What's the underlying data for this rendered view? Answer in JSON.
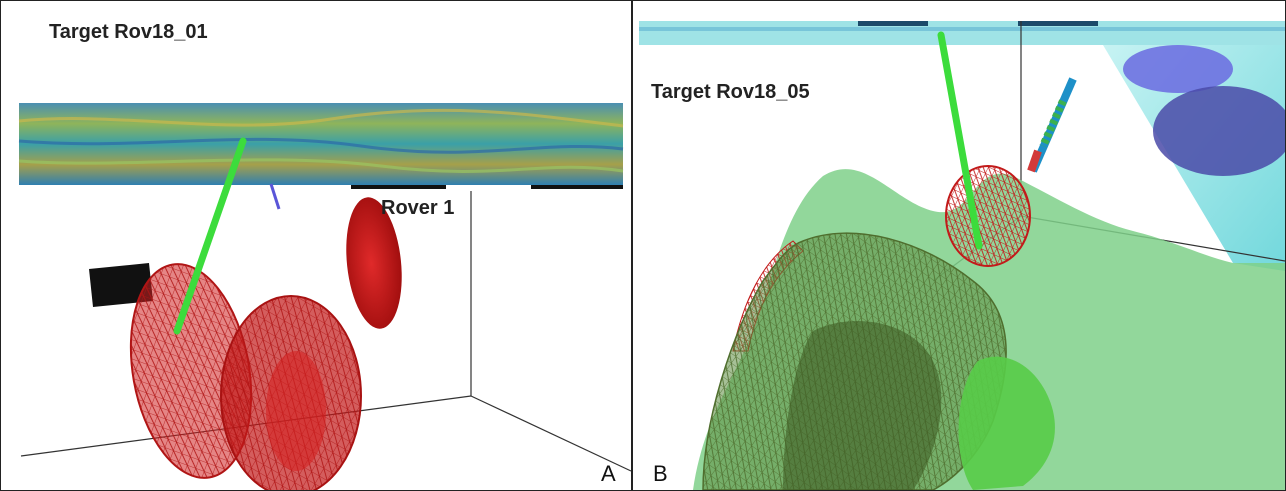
{
  "panels": [
    {
      "id": "A",
      "title": "Target Rov18_01",
      "annotation": "Rover 1",
      "corner_label": "A"
    },
    {
      "id": "B",
      "title": "Target Rov18_05",
      "corner_label": "B"
    }
  ],
  "colors": {
    "target_mesh": "#c21a1a",
    "target_solid": "#d42222",
    "well_path": "#3cdc3c",
    "green_volume": "#7fd089",
    "dark_green_mesh": "#4f6e2e",
    "seismic_cyan": "#8fe6e6",
    "box_lines": "#333333"
  },
  "icons": [
    "well-trajectory-icon",
    "seismic-slice-icon"
  ]
}
